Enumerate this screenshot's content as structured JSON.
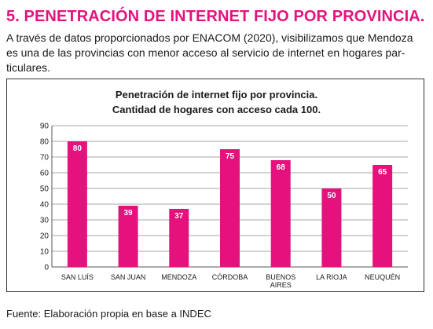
{
  "header": {
    "title": "5. PENETRACIÓN DE INTERNET FIJO POR PROVINCIA.",
    "intro_line1": "A través de datos proporcionados por ENACOM (2020), visibilizamos que Mendoza",
    "intro_line2": "es una de las provincias con menor acceso al servicio de internet en hogares par-",
    "intro_line3": "ticulares."
  },
  "chart_data": {
    "type": "bar",
    "title": "Penetración de internet fijo por provincia.",
    "subtitle": "Cantidad de hogares con acceso cada 100.",
    "categories": [
      "SAN LUÍS",
      "SAN JUAN",
      "MENDOZA",
      "CÓRDOBA",
      "BUENOS AIRES",
      "LA RIOJA",
      "NEUQUÉN"
    ],
    "values": [
      80,
      39,
      37,
      75,
      68,
      50,
      65
    ],
    "data_labels": [
      "80",
      "39",
      "37",
      "75",
      "68",
      "50",
      "65"
    ],
    "y_ticks": [
      "0",
      "10",
      "20",
      "30",
      "40",
      "50",
      "60",
      "70",
      "80",
      "90"
    ],
    "ylim": [
      0,
      90
    ],
    "xlabel": "",
    "ylabel": "",
    "grid": true,
    "bar_color": "#e5127e",
    "label_color": "#ffffff"
  },
  "footer": {
    "source": "Fuente: Elaboración propia en base a INDEC"
  },
  "colors": {
    "accent": "#e5127e"
  }
}
